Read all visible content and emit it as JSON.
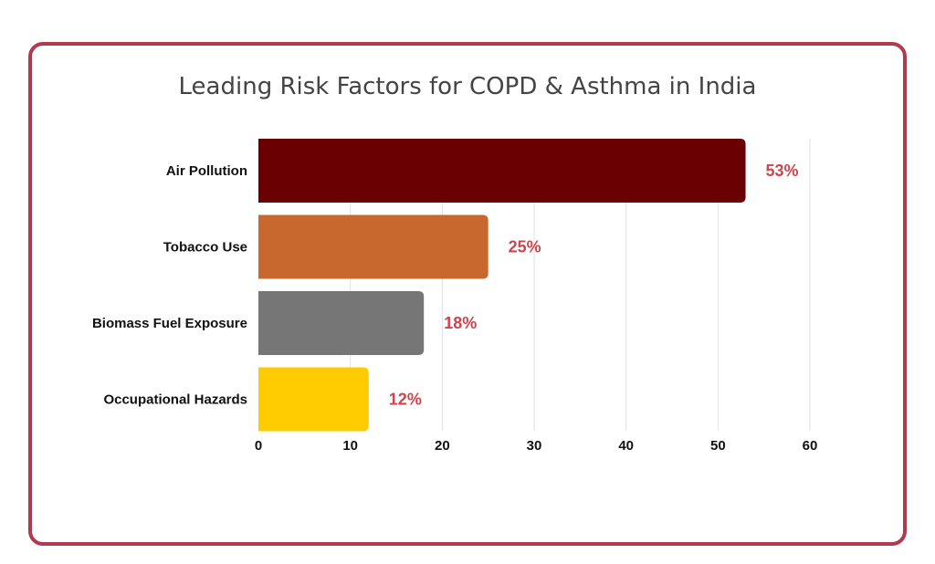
{
  "chart_data": {
    "type": "bar",
    "orientation": "horizontal",
    "title": "Leading Risk Factors for COPD & Asthma in India",
    "categories": [
      "Air Pollution",
      "Tobacco Use",
      "Biomass Fuel Exposure",
      "Occupational Hazards"
    ],
    "values": [
      53,
      25,
      18,
      12
    ],
    "data_labels": [
      "53%",
      "25%",
      "18%",
      "12%"
    ],
    "bar_colors": [
      "#6b0000",
      "#c8672e",
      "#767676",
      "#fdcb00"
    ],
    "label_color": "#d0434b",
    "xlim": [
      0,
      60
    ],
    "x_ticks": [
      0,
      10,
      20,
      30,
      40,
      50,
      60
    ],
    "grid": true,
    "legend": "none"
  },
  "frame": {
    "border_color": "#b03a4e"
  }
}
